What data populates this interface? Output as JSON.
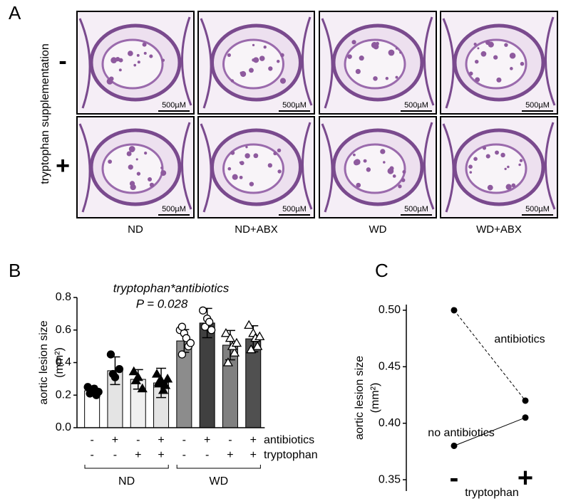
{
  "panel_a": {
    "label": "A",
    "row_title": "tryptophan supplementation",
    "rows": [
      "-",
      "+"
    ],
    "columns": [
      "ND",
      "ND+ABX",
      "WD",
      "WD+ABX"
    ],
    "scale_bar": "500µM"
  },
  "chart_data": [
    {
      "type": "bar",
      "label": "B",
      "annotation": [
        "tryptophan*antibiotics",
        "P = 0.028"
      ],
      "y_label": [
        "aortic lesion size",
        "(mm²)"
      ],
      "ylim": [
        0,
        0.8
      ],
      "yticks": [
        {
          "value": 0,
          "label": "0.0"
        },
        0.2,
        0.4,
        0.6,
        0.8
      ],
      "values": [
        0.227,
        0.35,
        0.297,
        0.275,
        0.533,
        0.643,
        0.507,
        0.546
      ],
      "errors": [
        0.03,
        0.085,
        0.06,
        0.09,
        0.07,
        0.09,
        0.09,
        0.08
      ],
      "points": [
        [
          0.25,
          0.22,
          0.2,
          0.21,
          0.24,
          0.22
        ],
        [
          0.45,
          0.31,
          0.36,
          0.33
        ],
        [
          0.345,
          0.31,
          0.24,
          0.29
        ],
        [
          0.33,
          0.29,
          0.26,
          0.28,
          0.23,
          0.3,
          0.27
        ],
        [
          0.6,
          0.58,
          0.5,
          0.45,
          0.55,
          0.52,
          0.62
        ],
        [
          0.72,
          0.67,
          0.6,
          0.62,
          0.65
        ],
        [
          0.58,
          0.55,
          0.46,
          0.4,
          0.5,
          0.52
        ],
        [
          0.63,
          0.58,
          0.5,
          0.48,
          0.55,
          0.56
        ]
      ],
      "colors": [
        "#ffffff",
        "#e4e4e4",
        "#f0f0f0",
        "#e4e4e4",
        "#8c8c8c",
        "#404040",
        "#808080",
        "#505050"
      ],
      "markers": [
        "circle-filled",
        "circle-filled",
        "triangle-filled",
        "triangle-filled",
        "circle-open",
        "circle-open",
        "triangle-open",
        "triangle-open"
      ],
      "factor_rows": [
        {
          "name": "antibiotics",
          "levels": [
            "-",
            "+",
            "-",
            "+",
            "-",
            "+",
            "-",
            "+"
          ]
        },
        {
          "name": "tryptophan",
          "levels": [
            "-",
            "-",
            "+",
            "+",
            "-",
            "-",
            "+",
            "+"
          ]
        }
      ],
      "groups": [
        "ND",
        "WD"
      ]
    },
    {
      "type": "line",
      "label": "C",
      "categories": [
        "-",
        "+"
      ],
      "x_label": "tryptophan",
      "y_label": [
        "aortic lesion size",
        "(mm²)"
      ],
      "ylim": [
        0.34,
        0.505
      ],
      "yticks": [
        0.35,
        {
          "value": 0.4,
          "label": "0.40"
        },
        0.45,
        {
          "value": 0.5,
          "label": "0.50"
        }
      ],
      "series": [
        {
          "name": "antibiotics",
          "color": "#000000",
          "dashed": true,
          "values": [
            0.5,
            0.42
          ]
        },
        {
          "name": "no antibiotics",
          "color": "#000000",
          "dashed": false,
          "values": [
            0.38,
            0.405
          ]
        }
      ]
    }
  ]
}
